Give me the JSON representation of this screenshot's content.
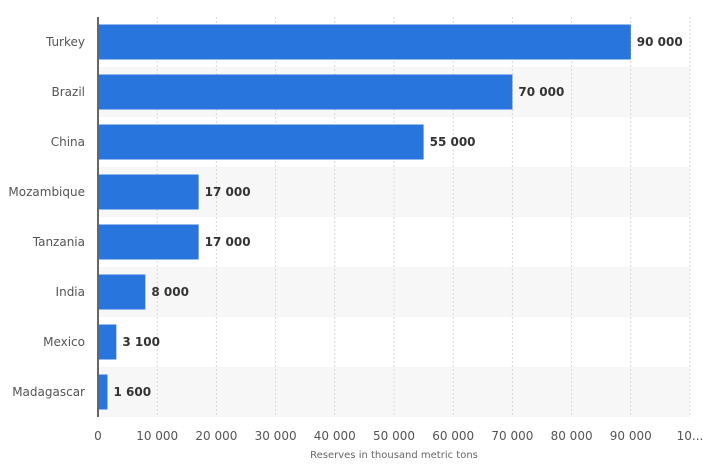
{
  "chart_data": {
    "type": "bar",
    "orientation": "horizontal",
    "categories": [
      "Turkey",
      "Brazil",
      "China",
      "Mozambique",
      "Tanzania",
      "India",
      "Mexico",
      "Madagascar"
    ],
    "values": [
      90000,
      70000,
      55000,
      17000,
      17000,
      8000,
      3100,
      1600
    ],
    "value_labels": [
      "90 000",
      "70 000",
      "55 000",
      "17 000",
      "17 000",
      "8 000",
      "3 100",
      "1 600"
    ],
    "xlabel": "Reserves in thousand metric tons",
    "ylabel": "",
    "xlim": [
      0,
      100000
    ],
    "x_ticks": [
      "0",
      "10 000",
      "20 000",
      "30 000",
      "40 000",
      "50 000",
      "60 000",
      "70 000",
      "80 000",
      "90 000",
      "10..."
    ],
    "grid": true,
    "bar_color": "#2876dd"
  }
}
